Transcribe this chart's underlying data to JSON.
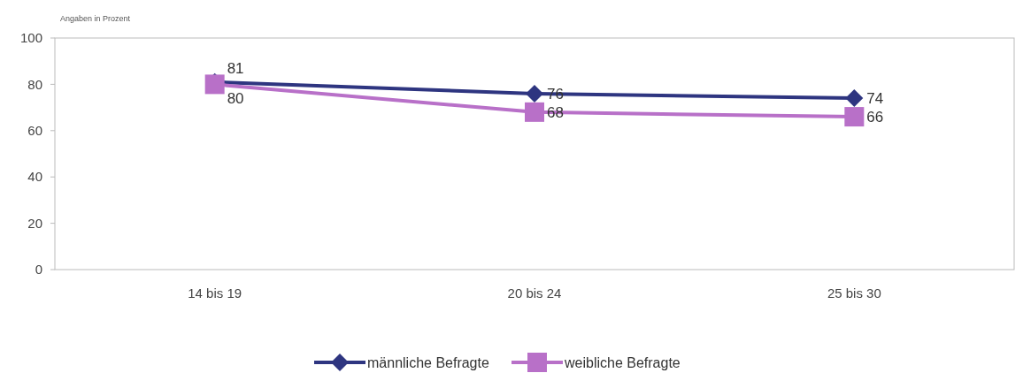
{
  "chart_data": {
    "type": "line",
    "ylabel": "Angaben in Prozent",
    "categories": [
      "14 bis 19",
      "20 bis 24",
      "25 bis 30"
    ],
    "series": [
      {
        "name": "männliche Befragte",
        "color": "#2e3580",
        "marker": "diamond",
        "values": [
          81,
          76,
          74
        ]
      },
      {
        "name": "weibliche Befragte",
        "color": "#b870c8",
        "marker": "square",
        "values": [
          80,
          68,
          66
        ]
      }
    ],
    "ylim": [
      0,
      100
    ],
    "yticks": [
      0,
      20,
      40,
      60,
      80,
      100
    ],
    "data_labels": true,
    "legend": "bottom",
    "line_style": "solid"
  }
}
